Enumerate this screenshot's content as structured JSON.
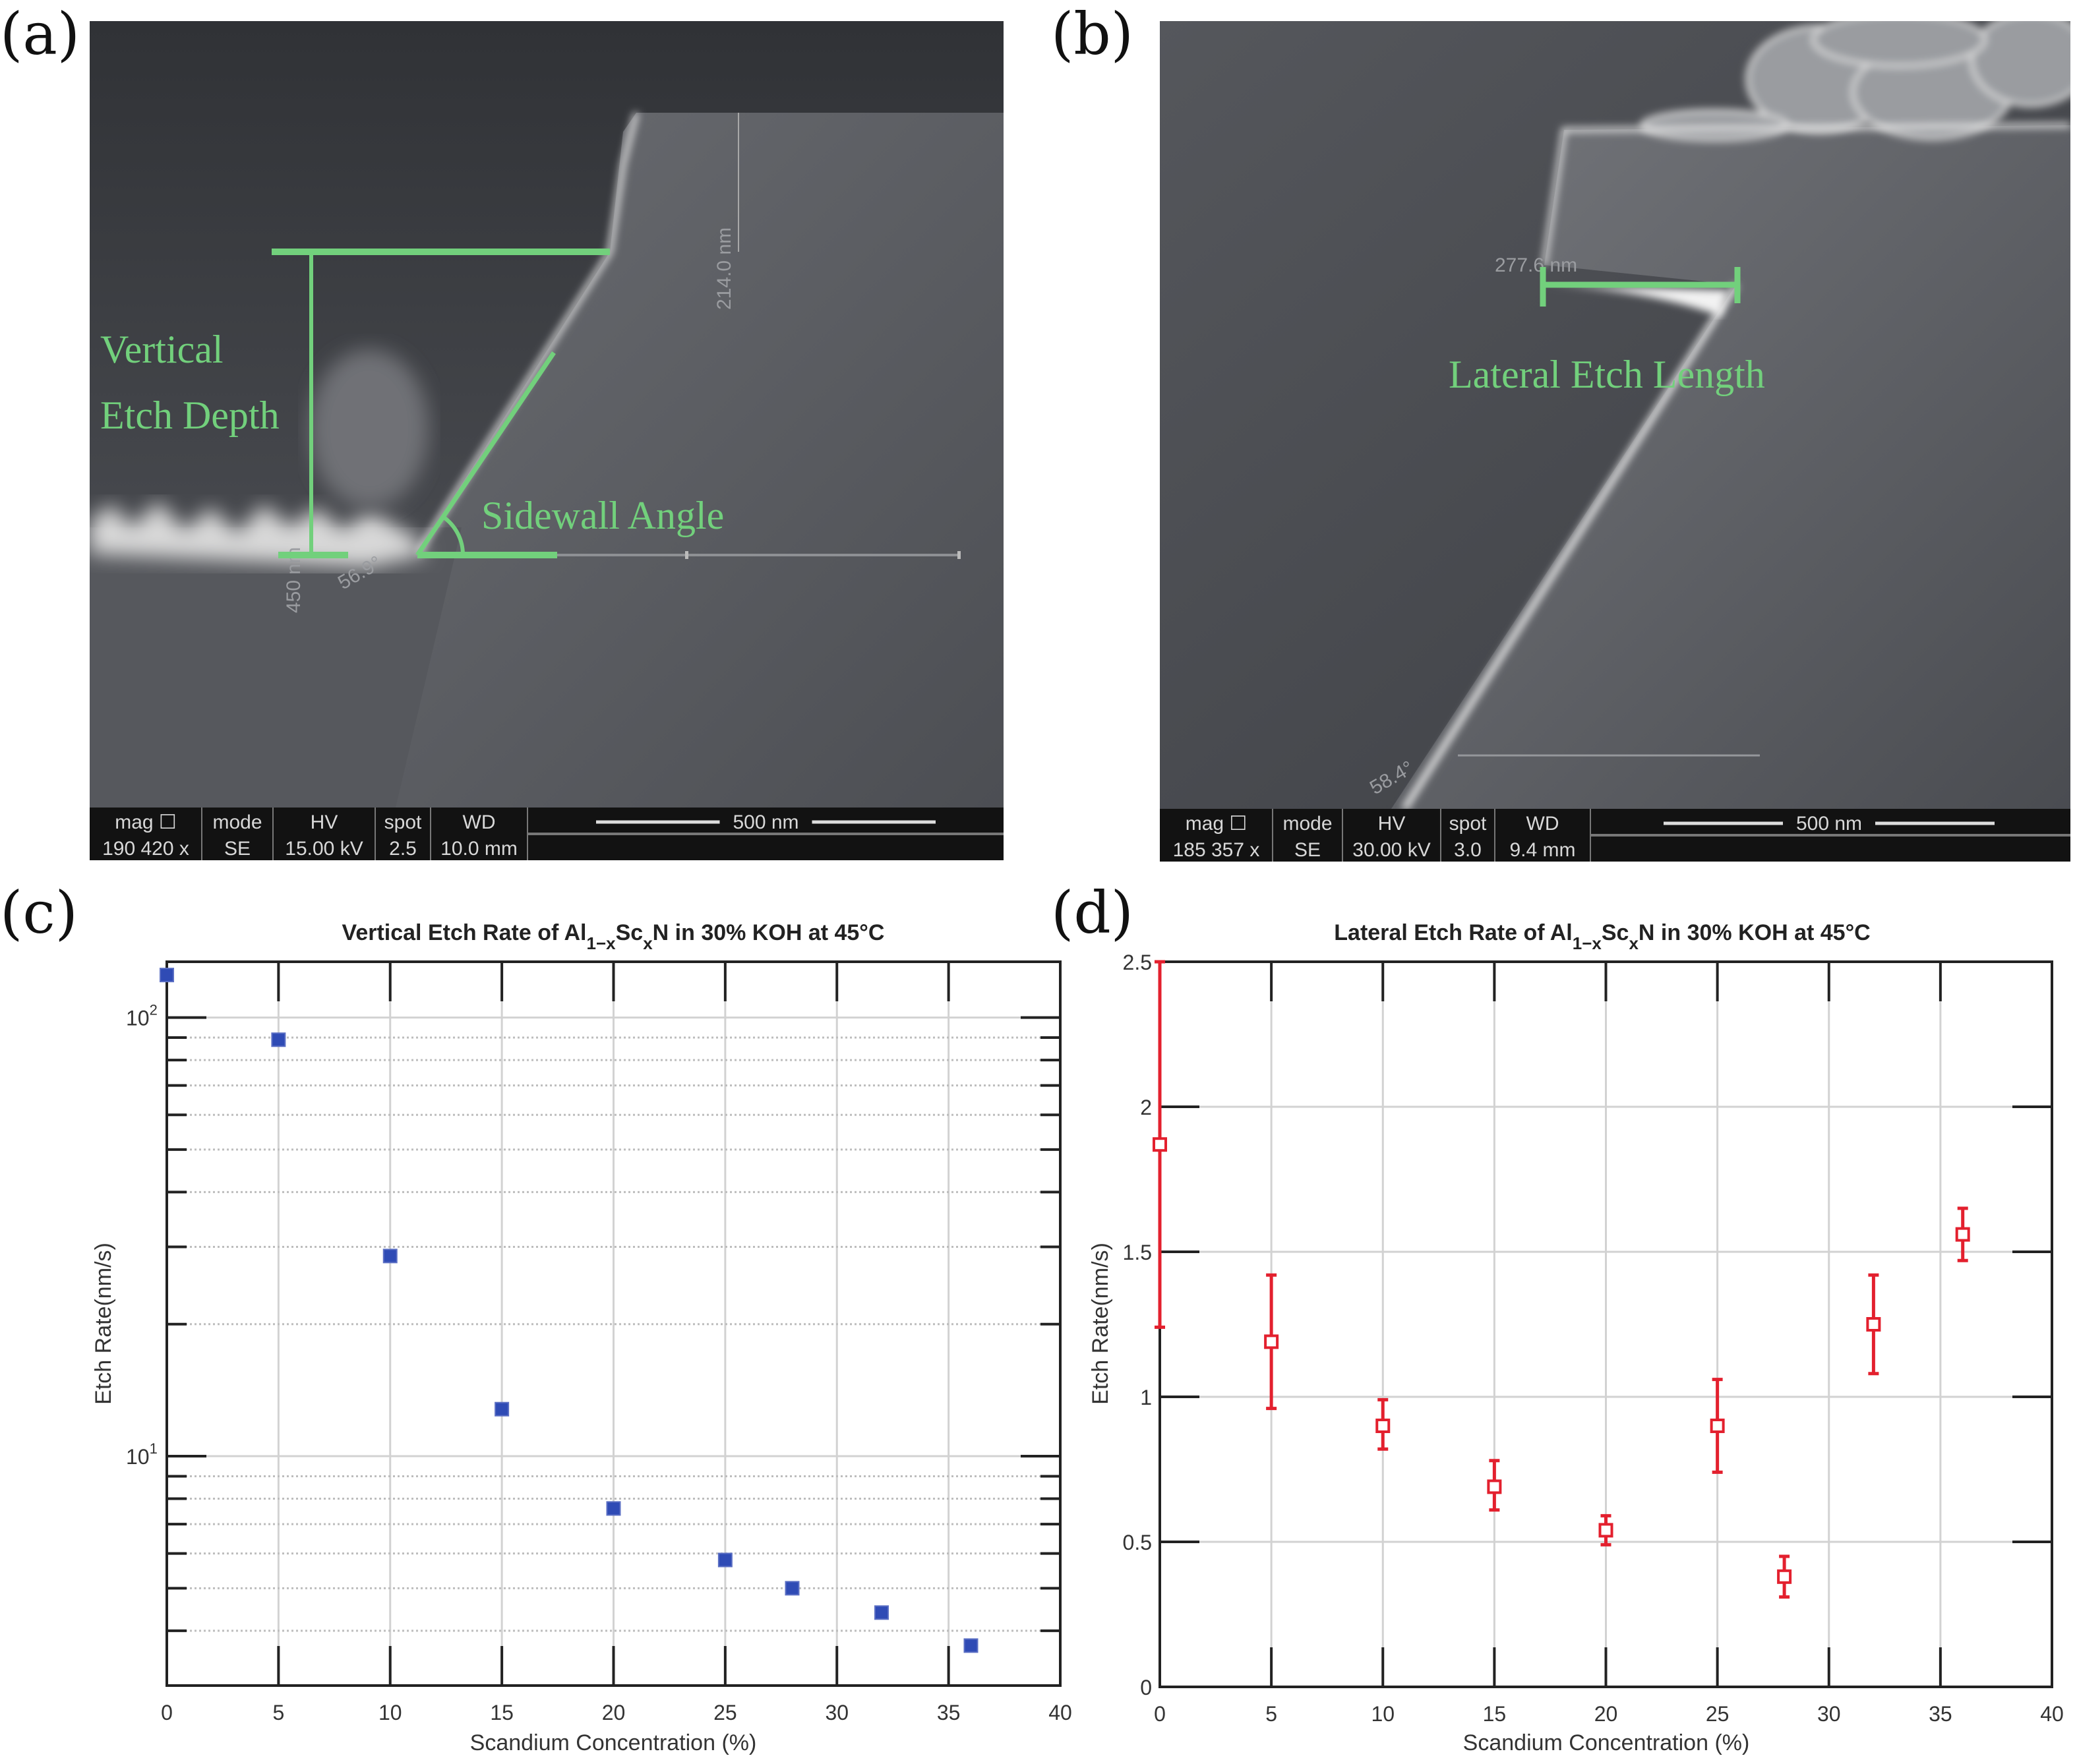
{
  "panel_a": {
    "label": "(a)",
    "annotations": {
      "vertical": "Vertical",
      "etch_depth": "Etch Depth",
      "sidewall_angle": "Sidewall Angle"
    },
    "measurements": {
      "height": "214.0 nm",
      "depth": "450 nm",
      "angle": "56.9°"
    },
    "info_bar": {
      "headers": [
        "mag ☐",
        "mode",
        "HV",
        "spot",
        "WD"
      ],
      "values": [
        "190 420 x",
        "SE",
        "15.00 kV",
        "2.5",
        "10.0 mm"
      ],
      "scale": "500 nm"
    }
  },
  "panel_b": {
    "label": "(b)",
    "annotations": {
      "lateral": "Lateral Etch Length"
    },
    "measurements": {
      "length": "277.6 nm",
      "angle": "58.4°"
    },
    "info_bar": {
      "headers": [
        "mag ☐",
        "mode",
        "HV",
        "spot",
        "WD"
      ],
      "values": [
        "185 357 x",
        "SE",
        "30.00 kV",
        "3.0",
        "9.4 mm"
      ],
      "scale": "500 nm"
    }
  },
  "panel_c": {
    "label": "(c)"
  },
  "panel_d": {
    "label": "(d)"
  },
  "colors": {
    "annotation": "#72d07c",
    "vertical_series": "#2f4bb5",
    "lateral_series": "#e3202e"
  },
  "chart_data": [
    {
      "type": "scatter",
      "title": {
        "pre": "Vertical Etch Rate of Al",
        "sub1": "1−x",
        "mid": "Sc",
        "sub2": "x",
        "post": "N in 30% KOH at 45°C"
      },
      "xlabel": "Scandium Concentration (%)",
      "ylabel": "Etch Rate(nm/s)",
      "xlim": [
        0,
        40
      ],
      "ylim": [
        3,
        134
      ],
      "yscale": "log",
      "grid": true,
      "xticks": [
        "0",
        "5",
        "10",
        "15",
        "20",
        "25",
        "30",
        "35",
        "40"
      ],
      "yticks": [
        {
          "value": 10,
          "base": "10",
          "exp": "1"
        },
        {
          "value": 100,
          "base": "10",
          "exp": "2"
        }
      ],
      "marker": "filled-square",
      "x": [
        0,
        5,
        10,
        15,
        20,
        25,
        28,
        32,
        36
      ],
      "y": [
        125,
        89,
        28.6,
        12.8,
        7.6,
        5.8,
        5.0,
        4.4,
        3.7
      ]
    },
    {
      "type": "scatter",
      "title": {
        "pre": "Lateral Etch Rate of Al",
        "sub1": "1−x",
        "mid": "Sc",
        "sub2": "x",
        "post": "N in 30% KOH at 45°C"
      },
      "xlabel": "Scandium Concentration (%)",
      "ylabel": "Etch Rate(nm/s)",
      "xlim": [
        0,
        40
      ],
      "ylim": [
        0,
        2.5
      ],
      "yscale": "linear",
      "grid": true,
      "xticks": [
        "0",
        "5",
        "10",
        "15",
        "20",
        "25",
        "30",
        "35",
        "40"
      ],
      "yticks": [
        "0",
        "0.5",
        "1",
        "1.5",
        "2",
        "2.5"
      ],
      "marker": "open-square-errorbar",
      "x": [
        0,
        5,
        10,
        15,
        20,
        25,
        28,
        32,
        36
      ],
      "y": [
        1.87,
        1.19,
        0.9,
        0.69,
        0.54,
        0.9,
        0.38,
        1.25,
        1.56
      ],
      "y_err_low": [
        1.24,
        0.96,
        0.82,
        0.61,
        0.49,
        0.74,
        0.31,
        1.08,
        1.47
      ],
      "y_err_high": [
        2.5,
        1.42,
        0.99,
        0.78,
        0.59,
        1.06,
        0.45,
        1.42,
        1.65
      ]
    }
  ]
}
